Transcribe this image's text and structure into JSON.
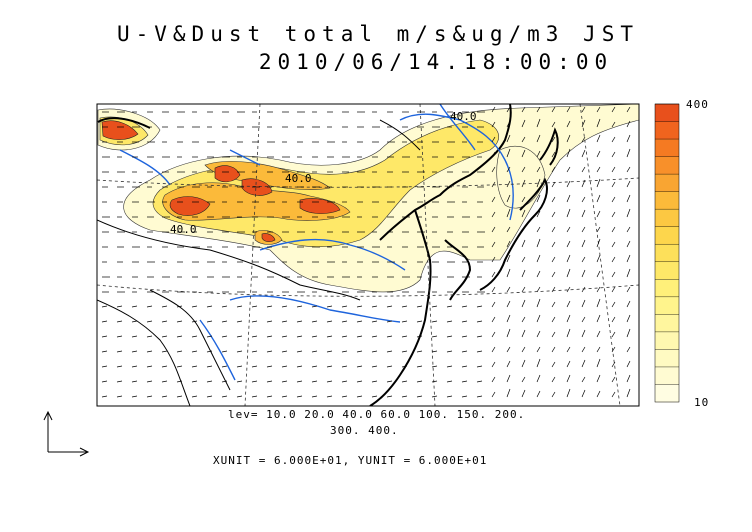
{
  "title_line1": "U-V&Dust total m/s&ug/m3 JST",
  "title_line2": "2010/06/14.18:00:00",
  "contour_label_top": "40.0",
  "contour_label_mid": "40.0",
  "contour_label_left": "40.0",
  "colorbar": {
    "max_label": "400",
    "min_label": "10",
    "colors": [
      "#e8501c",
      "#f0641e",
      "#f57a22",
      "#f8902a",
      "#f9a532",
      "#fbba3a",
      "#fcc842",
      "#fdd64c",
      "#fde05a",
      "#fee868",
      "#fff07a",
      "#fff48c",
      "#fff69e",
      "#fff8b0",
      "#fffac2",
      "#fffbd2",
      "#fffde2"
    ]
  },
  "lev_line1": "lev= 10.0 20.0 40.0 60.0 100. 150. 200.",
  "lev_line2": "300. 400.",
  "units_line": "XUNIT = 6.000E+01, YUNIT = 6.000E+01",
  "colors": {
    "river": "#1e64dc",
    "coast": "#000000",
    "dust_dark": "#e8501c",
    "dust_mid": "#fbba3a",
    "dust_light": "#fff8b0"
  }
}
